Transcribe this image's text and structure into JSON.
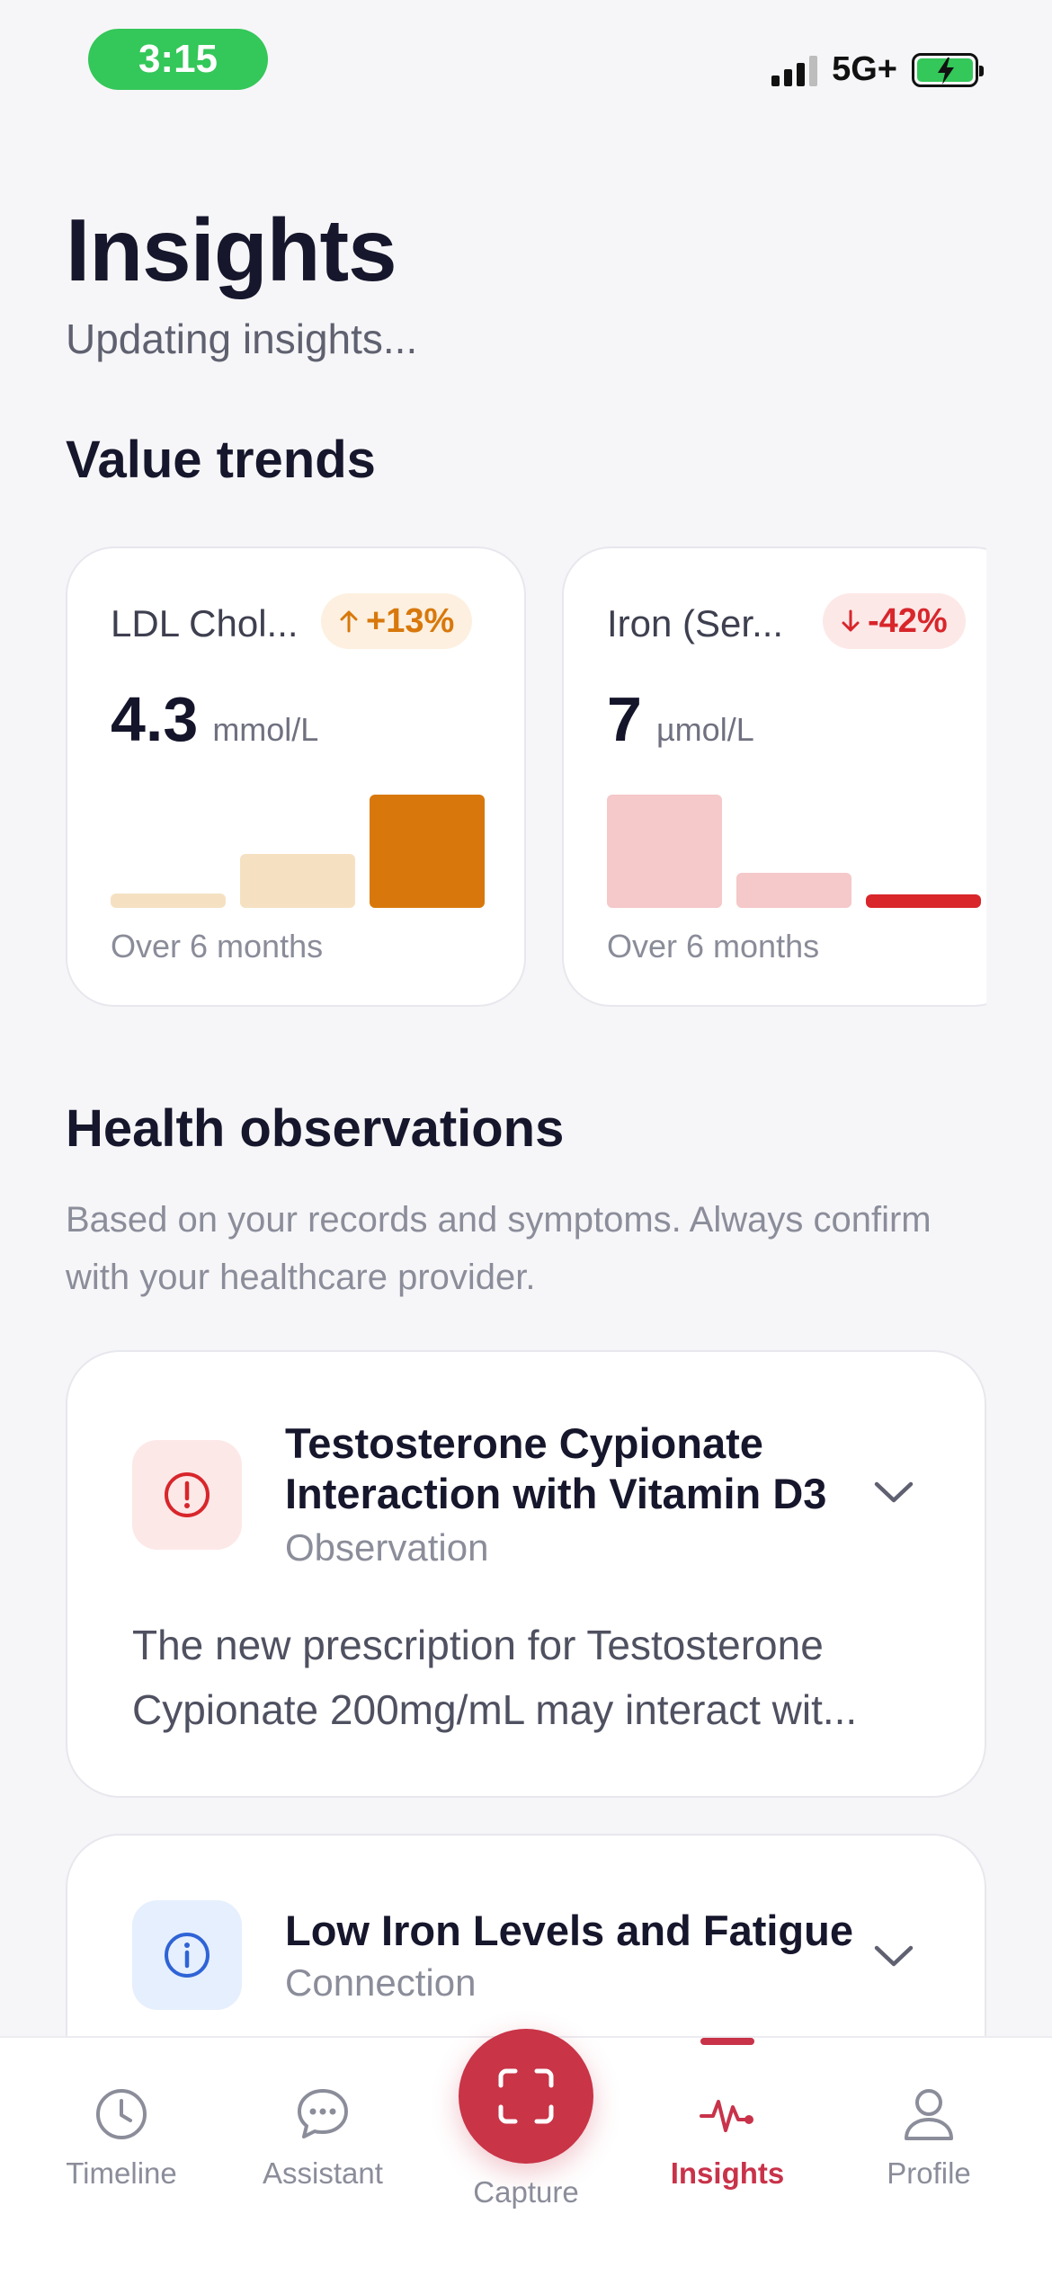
{
  "status_bar": {
    "time": "3:15",
    "network": "5G+"
  },
  "header": {
    "title": "Insights",
    "subtitle": "Updating insights..."
  },
  "value_trends": {
    "section_title": "Value trends",
    "cards": [
      {
        "name": "LDL Chol...",
        "change": "+13%",
        "direction": "up",
        "value": "4.3",
        "unit": "mmol/L",
        "period": "Over 6 months",
        "bar_levels": [
          0.13,
          0.48,
          1.0
        ],
        "colors": [
          "#f5e1c2",
          "#f5e1c2",
          "#d8780c"
        ]
      },
      {
        "name": "Iron (Ser...",
        "change": "-42%",
        "direction": "down",
        "value": "7",
        "unit": "µmol/L",
        "period": "Over 6 months",
        "bar_levels": [
          1.0,
          0.31,
          0.12
        ],
        "colors": [
          "#f5c8c9",
          "#f5c8c9",
          "#d8262b"
        ]
      }
    ]
  },
  "health_observations": {
    "section_title": "Health observations",
    "description": "Based on your records and symptoms. Always confirm with your healthcare provider.",
    "items": [
      {
        "title": "Testosterone Cypionate Interaction with Vitamin D3",
        "type": "Observation",
        "icon": "alert-icon",
        "preview": "The new prescription for Testosterone Cypionate 200mg/mL may interact wit..."
      },
      {
        "title": "Low Iron Levels and Fatigue",
        "type": "Connection",
        "icon": "info-icon"
      }
    ]
  },
  "tab_bar": {
    "active": "Insights",
    "tabs": [
      {
        "label": "Timeline",
        "icon": "clock-icon"
      },
      {
        "label": "Assistant",
        "icon": "chat-icon"
      },
      {
        "label": "Capture",
        "icon": "scan-icon"
      },
      {
        "label": "Insights",
        "icon": "pulse-icon"
      },
      {
        "label": "Profile",
        "icon": "person-icon"
      }
    ]
  },
  "colors": {
    "accent": "#c93447",
    "warning": "#d8780c",
    "danger": "#d8262b",
    "info": "#2f63d6"
  }
}
